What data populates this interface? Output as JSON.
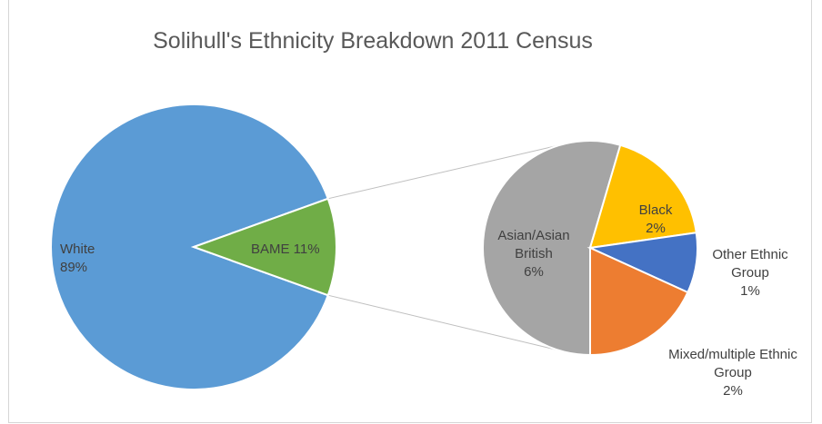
{
  "chart_data": {
    "type": "pie",
    "subtype": "pie-of-pie",
    "title": "Solihull's Ethnicity Breakdown 2011 Census",
    "primary": {
      "slices": [
        {
          "name": "White",
          "value": 89,
          "display": "89%",
          "color": "#5b9bd5"
        },
        {
          "name": "BAME",
          "value": 11,
          "display": "11%",
          "color": "#70ad47"
        }
      ]
    },
    "secondary": {
      "breakdown_of": "BAME",
      "slices": [
        {
          "name": "Black",
          "value": 2,
          "display": "2%",
          "color": "#ffc000"
        },
        {
          "name": "Other Ethnic Group",
          "value": 1,
          "display": "1%",
          "color": "#4472c4"
        },
        {
          "name": "Mixed/multiple Ethnic Group",
          "value": 2,
          "display": "2%",
          "color": "#ed7d31"
        },
        {
          "name": "Asian/Asian British",
          "value": 6,
          "display": "6%",
          "color": "#a5a5a5"
        }
      ]
    },
    "labels": {
      "white": [
        "White",
        "89%"
      ],
      "bame": [
        "BAME 11%"
      ],
      "black": [
        "Black",
        "2%"
      ],
      "other": [
        "Other Ethnic",
        "Group",
        "1%"
      ],
      "mixed": [
        "Mixed/multiple Ethnic",
        "Group",
        "2%"
      ],
      "asian": [
        "Asian/Asian",
        "British",
        "6%"
      ]
    },
    "legend": "none",
    "connector_color": "#bfbfbf"
  }
}
